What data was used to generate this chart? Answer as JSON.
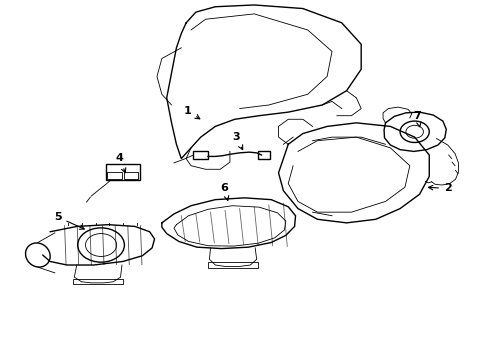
{
  "background_color": "#ffffff",
  "line_color": "#000000",
  "fig_width": 4.89,
  "fig_height": 3.6,
  "dpi": 100,
  "lw_thin": 0.6,
  "lw_med": 1.0,
  "lw_thick": 1.4
}
